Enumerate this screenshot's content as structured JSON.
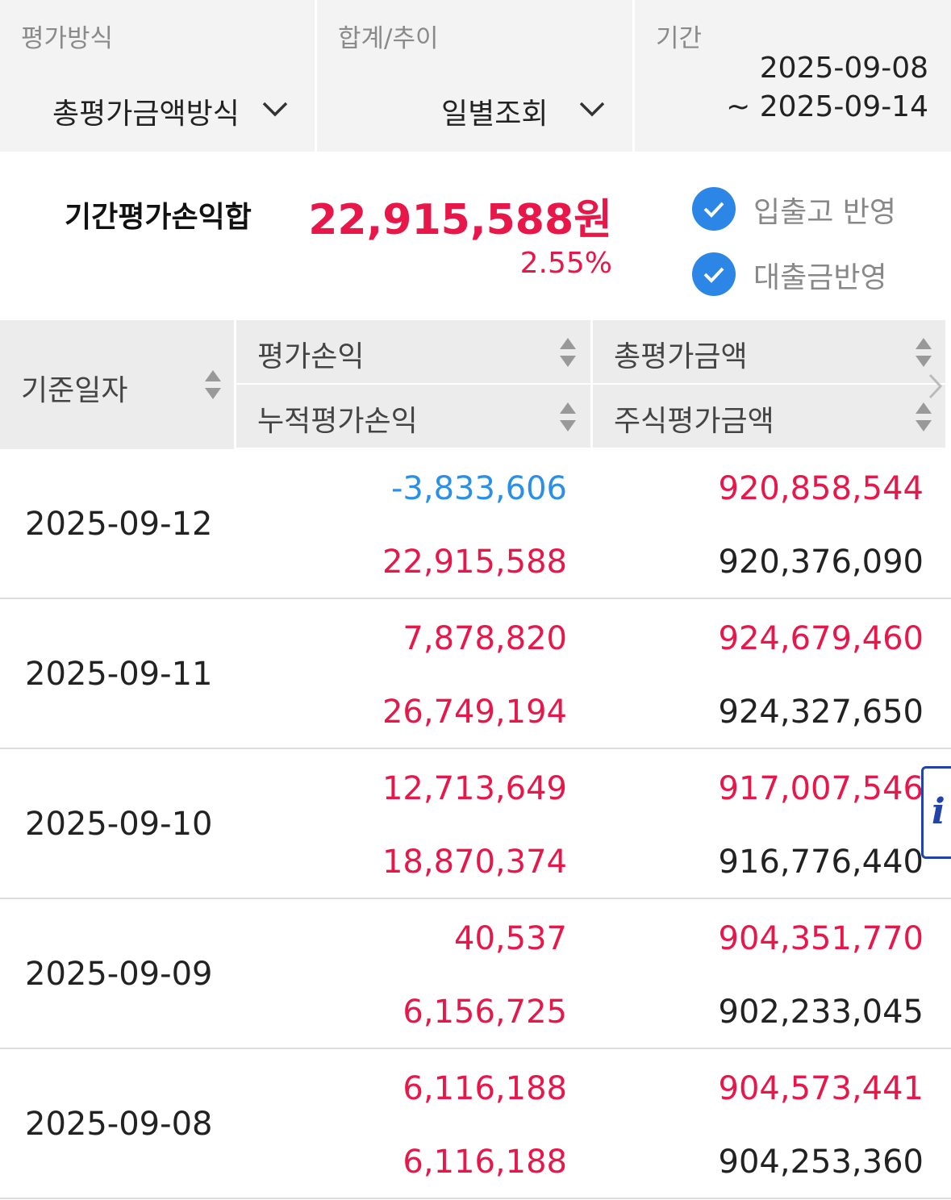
{
  "filters": [
    {
      "label": "평가방식",
      "value": "총평가금액방식"
    },
    {
      "label": "합계/추이",
      "value": "일별조회"
    },
    {
      "label": "기간",
      "value": "2025-09-08",
      "value_end": "~ 2025-09-14"
    }
  ],
  "summary": {
    "label": "기간평가손익합",
    "amount": "22,915,588원",
    "rate": "2.55%",
    "options": [
      "입출고 반영",
      "대출금반영"
    ]
  },
  "table": {
    "headers": {
      "date": "기준일자",
      "columns": [
        "평가손익",
        "누적평가손익",
        "총평가금액",
        "주식평가금액"
      ]
    },
    "rows": [
      [
        "2025-09-12",
        "-3,833,606",
        "22,915,588",
        "920,858,544",
        "920,376,090"
      ],
      [
        "2025-09-11",
        "7,878,820",
        "26,749,194",
        "924,679,460",
        "924,327,650"
      ],
      [
        "2025-09-10",
        "12,713,649",
        "18,870,374",
        "917,007,546",
        "916,776,440"
      ],
      [
        "2025-09-09",
        "40,537",
        "6,156,725",
        "904,351,770",
        "902,233,045"
      ],
      [
        "2025-09-08",
        "6,116,188",
        "6,116,188",
        "904,573,441",
        "904,253,360"
      ]
    ]
  },
  "info_icon": "i"
}
